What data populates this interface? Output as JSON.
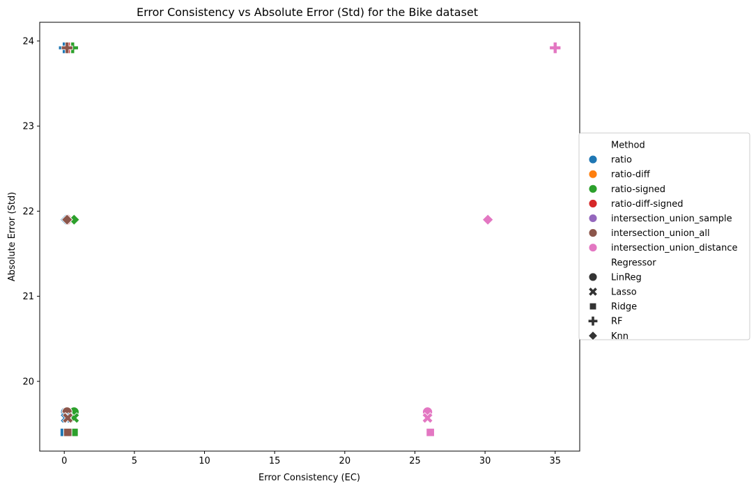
{
  "chart_data": {
    "type": "scatter",
    "title": "Error Consistency vs Absolute Error (Std) for the Bike dataset",
    "xlabel": "Error Consistency (EC)",
    "ylabel": "Absolute Error (Std)",
    "xlim": [
      -1.75,
      36.75
    ],
    "ylim": [
      19.18,
      24.22
    ],
    "xticks": [
      0,
      5,
      10,
      15,
      20,
      25,
      30,
      35
    ],
    "yticks": [
      20,
      21,
      22,
      23,
      24
    ],
    "grid": false,
    "legend_position": "right",
    "legend": {
      "method_title": "Method",
      "methods": [
        {
          "name": "ratio",
          "color": "#1f77b4"
        },
        {
          "name": "ratio-diff",
          "color": "#ff7f0e"
        },
        {
          "name": "ratio-signed",
          "color": "#2ca02c"
        },
        {
          "name": "ratio-diff-signed",
          "color": "#d62728"
        },
        {
          "name": "intersection_union_sample",
          "color": "#9467bd"
        },
        {
          "name": "intersection_union_all",
          "color": "#8c564b"
        },
        {
          "name": "intersection_union_distance",
          "color": "#e377c2"
        }
      ],
      "regressor_title": "Regressor",
      "regressors": [
        {
          "name": "LinReg",
          "marker": "circle"
        },
        {
          "name": "Lasso",
          "marker": "x"
        },
        {
          "name": "Ridge",
          "marker": "square"
        },
        {
          "name": "RF",
          "marker": "plus"
        },
        {
          "name": "Knn",
          "marker": "diamond"
        }
      ]
    },
    "points": [
      {
        "method": "ratio",
        "regressor": "LinReg",
        "x": 0.1,
        "y": 19.64
      },
      {
        "method": "ratio-diff",
        "regressor": "LinReg",
        "x": 0.3,
        "y": 19.64
      },
      {
        "method": "ratio-diff-signed",
        "regressor": "LinReg",
        "x": 0.3,
        "y": 19.64
      },
      {
        "method": "intersection_union_sample",
        "regressor": "LinReg",
        "x": 0.2,
        "y": 19.64
      },
      {
        "method": "ratio-signed",
        "regressor": "LinReg",
        "x": 0.7,
        "y": 19.64
      },
      {
        "method": "intersection_union_all",
        "regressor": "LinReg",
        "x": 0.2,
        "y": 19.64
      },
      {
        "method": "intersection_union_distance",
        "regressor": "LinReg",
        "x": 25.9,
        "y": 19.64
      },
      {
        "method": "ratio",
        "regressor": "Lasso",
        "x": 0.1,
        "y": 19.57
      },
      {
        "method": "ratio-diff-signed",
        "regressor": "Lasso",
        "x": 0.3,
        "y": 19.57
      },
      {
        "method": "ratio-signed",
        "regressor": "Lasso",
        "x": 0.7,
        "y": 19.57
      },
      {
        "method": "intersection_union_all",
        "regressor": "Lasso",
        "x": 0.25,
        "y": 19.57
      },
      {
        "method": "intersection_union_distance",
        "regressor": "Lasso",
        "x": 25.9,
        "y": 19.57
      },
      {
        "method": "ratio",
        "regressor": "Ridge",
        "x": 0.0,
        "y": 19.4
      },
      {
        "method": "ratio-diff-signed",
        "regressor": "Ridge",
        "x": 0.3,
        "y": 19.4
      },
      {
        "method": "ratio-signed",
        "regressor": "Ridge",
        "x": 0.7,
        "y": 19.4
      },
      {
        "method": "intersection_union_all",
        "regressor": "Ridge",
        "x": 0.25,
        "y": 19.4
      },
      {
        "method": "intersection_union_distance",
        "regressor": "Ridge",
        "x": 26.1,
        "y": 19.4
      },
      {
        "method": "ratio",
        "regressor": "RF",
        "x": 0.0,
        "y": 23.92
      },
      {
        "method": "ratio-diff-signed",
        "regressor": "RF",
        "x": 0.3,
        "y": 23.92
      },
      {
        "method": "ratio-signed",
        "regressor": "RF",
        "x": 0.6,
        "y": 23.92
      },
      {
        "method": "intersection_union_all",
        "regressor": "RF",
        "x": 0.2,
        "y": 23.92
      },
      {
        "method": "intersection_union_distance",
        "regressor": "RF",
        "x": 35.0,
        "y": 23.92
      },
      {
        "method": "ratio",
        "regressor": "Knn",
        "x": 0.1,
        "y": 21.9
      },
      {
        "method": "ratio-diff-signed",
        "regressor": "Knn",
        "x": 0.3,
        "y": 21.9
      },
      {
        "method": "ratio-signed",
        "regressor": "Knn",
        "x": 0.7,
        "y": 21.9
      },
      {
        "method": "intersection_union_all",
        "regressor": "Knn",
        "x": 0.2,
        "y": 21.9
      },
      {
        "method": "intersection_union_distance",
        "regressor": "Knn",
        "x": 30.2,
        "y": 21.9
      }
    ]
  }
}
